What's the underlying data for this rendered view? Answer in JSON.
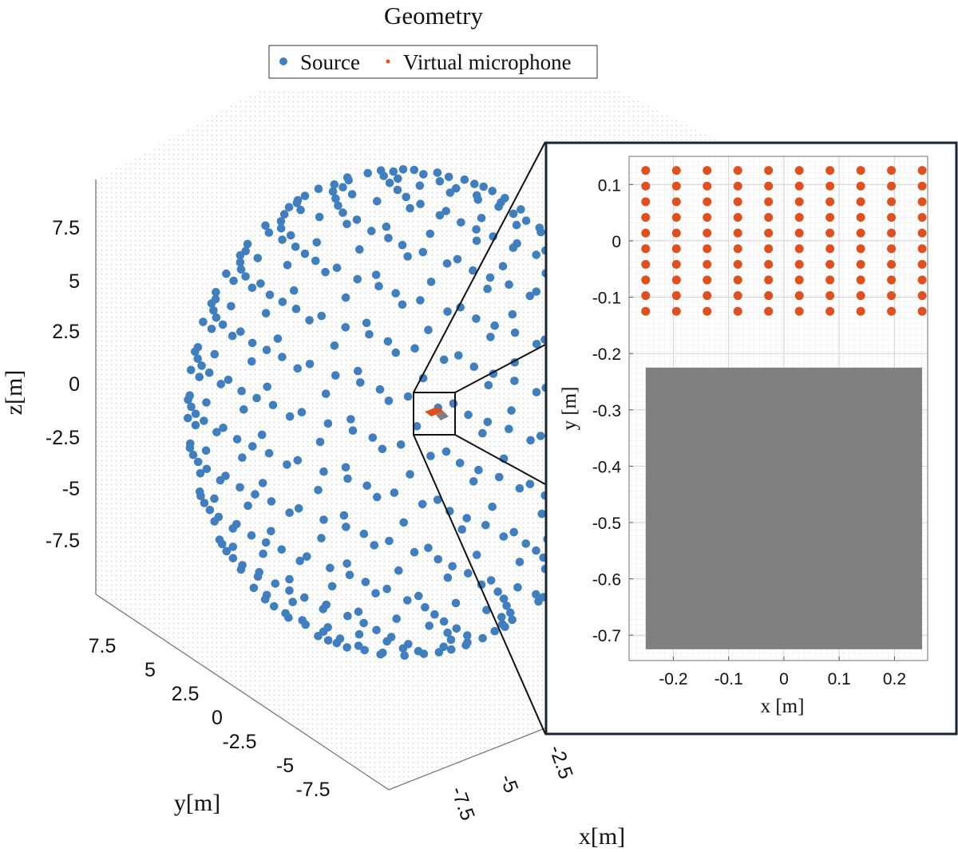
{
  "chart_data": [
    {
      "type": "scatter",
      "projection": "3d",
      "title": "Geometry",
      "legend": {
        "placement": "top",
        "entries": [
          "Source",
          "Virtual microphone"
        ]
      },
      "xlabel": "x[m]",
      "ylabel": "y[m]",
      "zlabel": "z[m]",
      "xticks": [
        "-7.5",
        "-5",
        "-2.5"
      ],
      "yticks": [
        "7.5",
        "5",
        "2.5",
        "0",
        "-2.5",
        "-5",
        "-7.5"
      ],
      "zticks": [
        "7.5",
        "5",
        "2.5",
        "0",
        "-2.5",
        "-5",
        "-7.5"
      ],
      "grid": true,
      "series": [
        {
          "name": "Source",
          "color": "#3f7fbf",
          "distribution": "points on a sphere around the origin",
          "radius_m": 10
        },
        {
          "name": "Virtual microphone",
          "color": "#e0501e"
        }
      ],
      "zoom_region_color": "#808080"
    },
    {
      "type": "scatter",
      "inset": true,
      "xlabel": "x [m]",
      "ylabel": "y [m]",
      "xlim": [
        -0.28,
        0.26
      ],
      "ylim": [
        -0.745,
        0.15
      ],
      "xticks": [
        -0.2,
        -0.1,
        0,
        0.1,
        0.2
      ],
      "xtick_labels": [
        "-0.2",
        "-0.1",
        "0",
        "0.1",
        "0.2"
      ],
      "yticks": [
        0.1,
        0,
        -0.1,
        -0.2,
        -0.3,
        -0.4,
        -0.5,
        -0.6,
        -0.7
      ],
      "ytick_labels": [
        "0.1",
        "0",
        "-0.1",
        "-0.2",
        "-0.3",
        "-0.4",
        "-0.5",
        "-0.6",
        "-0.7"
      ],
      "grid": true,
      "microphones": {
        "color": "#e0501e",
        "x": [
          -0.25,
          -0.1944,
          -0.1389,
          -0.0833,
          -0.0278,
          0.0278,
          0.0833,
          0.1389,
          0.1944,
          0.25
        ],
        "y": [
          0.125,
          0.0972,
          0.0694,
          0.0417,
          0.0139,
          -0.0139,
          -0.0417,
          -0.0694,
          -0.0972,
          -0.125
        ]
      },
      "rectangle": {
        "color": "#808080",
        "x": [
          -0.25,
          0.25
        ],
        "y": [
          -0.725,
          -0.225
        ]
      }
    }
  ]
}
